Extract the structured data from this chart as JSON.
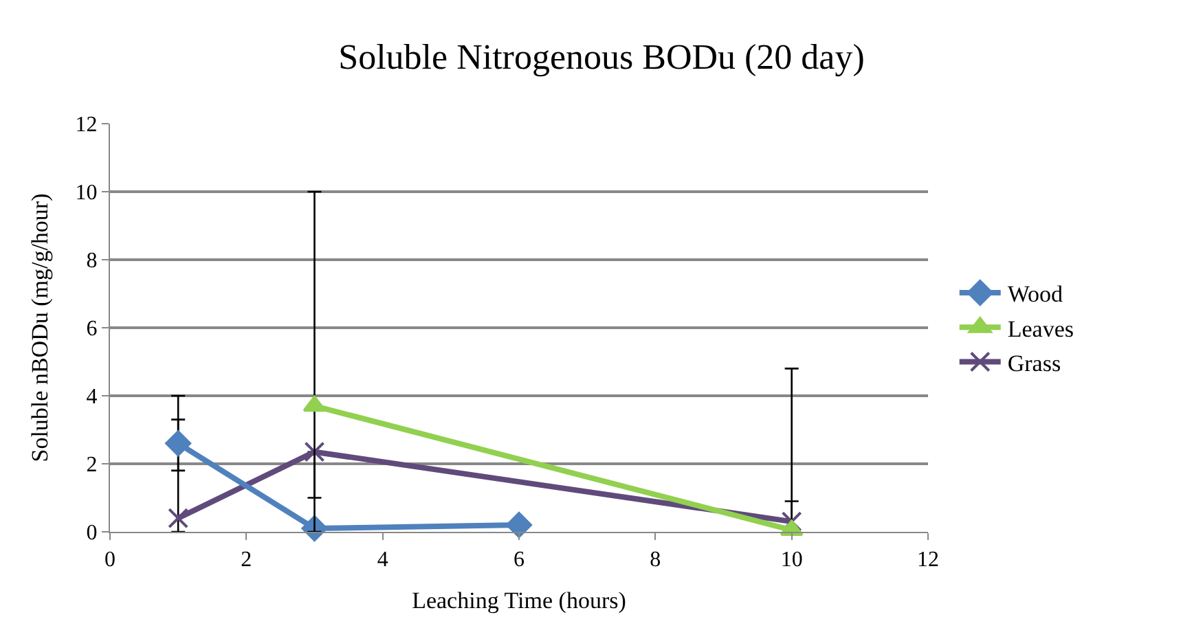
{
  "chart_data": {
    "type": "line",
    "title": "Soluble Nitrogenous BODu (20 day)",
    "xlabel": "Leaching Time (hours)",
    "ylabel": "Soluble nBODu (mg/g/hour)",
    "xlim": [
      0,
      12
    ],
    "xticks": [
      0,
      2,
      4,
      6,
      8,
      10,
      12
    ],
    "ylim": [
      0,
      12
    ],
    "yticks": [
      0,
      2,
      4,
      6,
      8,
      10,
      12
    ],
    "grid": "y",
    "legend": "right",
    "series": [
      {
        "name": "Wood",
        "color": "#4f81bd",
        "marker": "diamond",
        "x": [
          1,
          3,
          6
        ],
        "values": [
          2.6,
          0.1,
          0.2
        ],
        "errors": [
          [
            1.8,
            3.3
          ],
          null,
          null
        ]
      },
      {
        "name": "Leaves",
        "color": "#92d050",
        "marker": "triangle",
        "x": [
          3,
          10
        ],
        "values": [
          3.7,
          0.05
        ],
        "errors": [
          [
            0,
            10.0
          ],
          [
            0,
            0.9
          ]
        ]
      },
      {
        "name": "Grass",
        "color": "#604a7b",
        "marker": "cross",
        "x": [
          1,
          3,
          10
        ],
        "values": [
          0.4,
          2.35,
          0.3
        ],
        "errors": [
          [
            0,
            4.0
          ],
          [
            1.0,
            2.35
          ],
          [
            0,
            4.8
          ]
        ]
      }
    ]
  }
}
